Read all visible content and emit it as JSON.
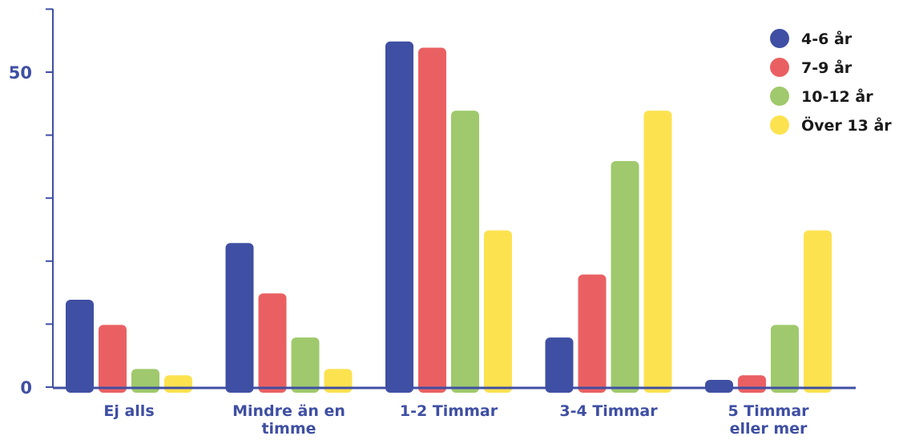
{
  "chart_data": {
    "type": "bar",
    "categories": [
      "Ej alls",
      "Mindre än en timme",
      "1-2 Timmar",
      "3-4 Timmar",
      "5 Timmar eller mer"
    ],
    "category_lines": [
      [
        "Ej alls"
      ],
      [
        "Mindre än en",
        "timme"
      ],
      [
        "1-2 Timmar"
      ],
      [
        "3-4 Timmar"
      ],
      [
        "5 Timmar",
        "eller mer"
      ]
    ],
    "series": [
      {
        "name": "4-6 år",
        "color": "#3f4fa3",
        "values": [
          14,
          23,
          55,
          8,
          1
        ]
      },
      {
        "name": "7-9 år",
        "color": "#ea6062",
        "values": [
          10,
          15,
          54,
          18,
          2
        ]
      },
      {
        "name": "10-12 år",
        "color": "#9fc96c",
        "values": [
          3,
          8,
          44,
          36,
          10
        ]
      },
      {
        "name": "Över 13 år",
        "color": "#fde24f",
        "values": [
          2,
          3,
          25,
          44,
          25
        ]
      }
    ],
    "y_ticks": [
      0,
      50
    ],
    "ylim": [
      0,
      60
    ],
    "grid": false,
    "legend_position": "top-right",
    "axis_color": "#3f4fa3",
    "title": "",
    "xlabel": "",
    "ylabel": ""
  }
}
